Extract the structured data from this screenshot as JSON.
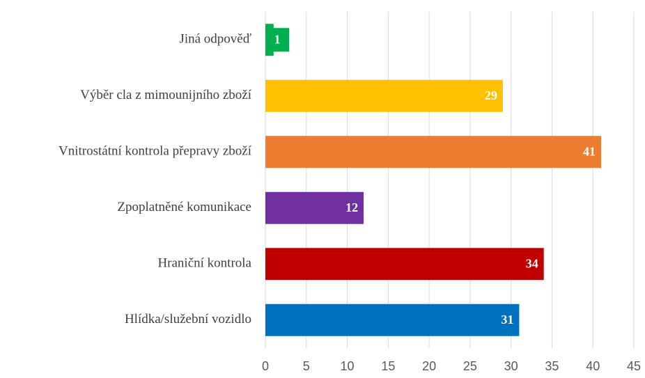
{
  "chart_data": {
    "type": "bar",
    "orientation": "horizontal",
    "categories": [
      "Jiná odpověď",
      "Výběr cla z mimounijního zboží",
      "Vnitrostátní kontrola přepravy zboží",
      "Zpoplatněné komunikace",
      "Hraniční kontrola",
      "Hlídka/služební vozidlo"
    ],
    "values": [
      1,
      29,
      41,
      12,
      34,
      31
    ],
    "colors": [
      "#00b050",
      "#ffc000",
      "#ed7d31",
      "#7030a0",
      "#c00000",
      "#0070c0"
    ],
    "xlim": [
      0,
      45
    ],
    "xticks": [
      0,
      5,
      10,
      15,
      20,
      25,
      30,
      35,
      40,
      45
    ],
    "grid": true
  }
}
